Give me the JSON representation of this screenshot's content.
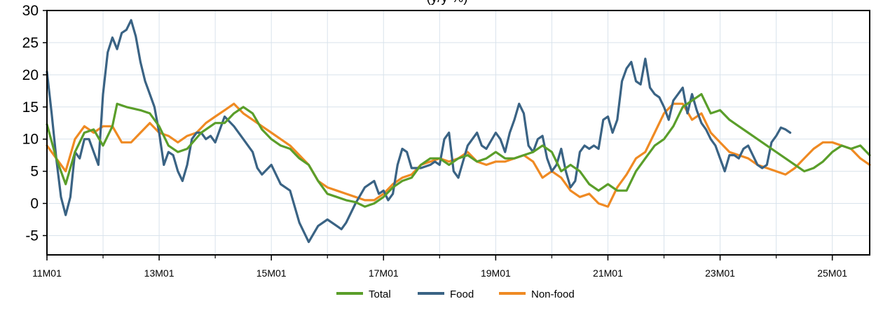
{
  "chart_data": {
    "type": "line",
    "title": "(y/y %)",
    "xlabel": "",
    "ylabel": "",
    "ylim": [
      -8,
      30
    ],
    "yticks": [
      -5,
      0,
      5,
      10,
      15,
      20,
      25,
      30
    ],
    "grid": true,
    "legend_position": "bottom",
    "x_tick_labels": [
      "11M01",
      "13M01",
      "15M01",
      "17M01",
      "19M01",
      "21M01",
      "23M01",
      "25M01"
    ],
    "x_tick_positions": [
      0,
      24,
      48,
      72,
      96,
      120,
      144,
      168
    ],
    "x_range": [
      0,
      176
    ],
    "colors": {
      "Total": "#5a9e2a",
      "Food": "#3a6384",
      "Non-food": "#ef8a23"
    },
    "series": [
      {
        "name": "Total",
        "points": [
          [
            0,
            12.3
          ],
          [
            2,
            7
          ],
          [
            4,
            3
          ],
          [
            6,
            8
          ],
          [
            8,
            11
          ],
          [
            10,
            11.5
          ],
          [
            12,
            9
          ],
          [
            14,
            12
          ],
          [
            15,
            15.5
          ],
          [
            17,
            15
          ],
          [
            20,
            14.5
          ],
          [
            22,
            14
          ],
          [
            24,
            12
          ],
          [
            26,
            9
          ],
          [
            28,
            8
          ],
          [
            30,
            8.5
          ],
          [
            33,
            11
          ],
          [
            36,
            12.5
          ],
          [
            38,
            12.5
          ],
          [
            40,
            14
          ],
          [
            42,
            15
          ],
          [
            44,
            14
          ],
          [
            46,
            11.5
          ],
          [
            48,
            10
          ],
          [
            50,
            9
          ],
          [
            52,
            8.5
          ],
          [
            54,
            7
          ],
          [
            56,
            6
          ],
          [
            58,
            3.5
          ],
          [
            60,
            1.5
          ],
          [
            62,
            1
          ],
          [
            64,
            0.5
          ],
          [
            66,
            0.2
          ],
          [
            68,
            -0.5
          ],
          [
            70,
            0
          ],
          [
            72,
            1
          ],
          [
            74,
            2.5
          ],
          [
            76,
            3.5
          ],
          [
            78,
            4
          ],
          [
            80,
            6
          ],
          [
            82,
            7
          ],
          [
            84,
            7
          ],
          [
            86,
            6
          ],
          [
            88,
            7
          ],
          [
            90,
            7.5
          ],
          [
            92,
            6.5
          ],
          [
            94,
            7
          ],
          [
            96,
            8
          ],
          [
            98,
            7
          ],
          [
            100,
            7
          ],
          [
            102,
            7.5
          ],
          [
            104,
            8
          ],
          [
            106,
            9
          ],
          [
            108,
            8
          ],
          [
            110,
            5
          ],
          [
            112,
            6
          ],
          [
            114,
            5
          ],
          [
            116,
            3
          ],
          [
            118,
            2
          ],
          [
            120,
            3
          ],
          [
            122,
            2
          ],
          [
            124,
            2
          ],
          [
            126,
            5
          ],
          [
            128,
            7
          ],
          [
            130,
            9
          ],
          [
            132,
            10
          ],
          [
            134,
            12
          ],
          [
            136,
            15
          ],
          [
            138,
            16
          ],
          [
            140,
            17
          ],
          [
            142,
            14
          ],
          [
            144,
            14.5
          ],
          [
            146,
            13
          ],
          [
            148,
            12
          ],
          [
            150,
            11
          ],
          [
            152,
            10
          ],
          [
            154,
            9
          ],
          [
            156,
            8
          ],
          [
            158,
            7
          ],
          [
            160,
            6
          ],
          [
            162,
            5
          ],
          [
            164,
            5.5
          ],
          [
            166,
            6.5
          ],
          [
            168,
            8
          ],
          [
            170,
            9
          ],
          [
            172,
            8.5
          ],
          [
            174,
            9
          ],
          [
            176,
            7.5
          ]
        ]
      },
      {
        "name": "Food",
        "points": [
          [
            0,
            20.5
          ],
          [
            1,
            14
          ],
          [
            2,
            7
          ],
          [
            3,
            1
          ],
          [
            4,
            -1.8
          ],
          [
            5,
            1
          ],
          [
            6,
            8
          ],
          [
            7,
            7
          ],
          [
            8,
            10
          ],
          [
            9,
            10
          ],
          [
            10,
            8
          ],
          [
            11,
            6
          ],
          [
            12,
            17
          ],
          [
            13,
            23.5
          ],
          [
            14,
            25.8
          ],
          [
            15,
            24
          ],
          [
            16,
            26.5
          ],
          [
            17,
            27
          ],
          [
            18,
            28.5
          ],
          [
            19,
            26
          ],
          [
            20,
            22
          ],
          [
            21,
            19
          ],
          [
            22,
            17
          ],
          [
            23,
            15
          ],
          [
            24,
            11
          ],
          [
            25,
            6
          ],
          [
            26,
            8
          ],
          [
            27,
            7.5
          ],
          [
            28,
            5
          ],
          [
            29,
            3.5
          ],
          [
            30,
            6
          ],
          [
            31,
            10
          ],
          [
            32,
            11
          ],
          [
            33,
            11
          ],
          [
            34,
            10
          ],
          [
            35,
            10.5
          ],
          [
            36,
            9.5
          ],
          [
            38,
            13.5
          ],
          [
            40,
            12
          ],
          [
            42,
            10
          ],
          [
            44,
            8
          ],
          [
            45,
            5.5
          ],
          [
            46,
            4.5
          ],
          [
            48,
            6
          ],
          [
            50,
            3
          ],
          [
            52,
            2
          ],
          [
            54,
            -3
          ],
          [
            56,
            -6
          ],
          [
            58,
            -3.5
          ],
          [
            60,
            -2.5
          ],
          [
            62,
            -3.5
          ],
          [
            63,
            -4
          ],
          [
            64,
            -3
          ],
          [
            66,
            0
          ],
          [
            68,
            2.5
          ],
          [
            70,
            3.5
          ],
          [
            71,
            1.5
          ],
          [
            72,
            2
          ],
          [
            73,
            0.5
          ],
          [
            74,
            1.5
          ],
          [
            75,
            6
          ],
          [
            76,
            8.5
          ],
          [
            77,
            8
          ],
          [
            78,
            5.5
          ],
          [
            80,
            5.5
          ],
          [
            82,
            6
          ],
          [
            83,
            6.5
          ],
          [
            84,
            6
          ],
          [
            85,
            10
          ],
          [
            86,
            11
          ],
          [
            87,
            5
          ],
          [
            88,
            4
          ],
          [
            90,
            9
          ],
          [
            92,
            11
          ],
          [
            93,
            9
          ],
          [
            94,
            8.5
          ],
          [
            96,
            11
          ],
          [
            97,
            10
          ],
          [
            98,
            8
          ],
          [
            99,
            11
          ],
          [
            100,
            13
          ],
          [
            101,
            15.5
          ],
          [
            102,
            14
          ],
          [
            103,
            9
          ],
          [
            104,
            8
          ],
          [
            105,
            10
          ],
          [
            106,
            10.5
          ],
          [
            107,
            7
          ],
          [
            108,
            5
          ],
          [
            109,
            6
          ],
          [
            110,
            8.5
          ],
          [
            111,
            5
          ],
          [
            112,
            2.5
          ],
          [
            113,
            3.5
          ],
          [
            114,
            8
          ],
          [
            115,
            9
          ],
          [
            116,
            8.5
          ],
          [
            117,
            9
          ],
          [
            118,
            8.5
          ],
          [
            119,
            13
          ],
          [
            120,
            13.5
          ],
          [
            121,
            11
          ],
          [
            122,
            13
          ],
          [
            123,
            19
          ],
          [
            124,
            21
          ],
          [
            125,
            22
          ],
          [
            126,
            19
          ],
          [
            127,
            18.5
          ],
          [
            128,
            22.5
          ],
          [
            129,
            18
          ],
          [
            130,
            17
          ],
          [
            131,
            16.5
          ],
          [
            132,
            15
          ],
          [
            133,
            13
          ],
          [
            134,
            16
          ],
          [
            135,
            17
          ],
          [
            136,
            18
          ],
          [
            137,
            14
          ],
          [
            138,
            17
          ],
          [
            139,
            14.5
          ],
          [
            140,
            12.5
          ],
          [
            141,
            11.5
          ],
          [
            142,
            10
          ],
          [
            143,
            9
          ],
          [
            144,
            7
          ],
          [
            145,
            5
          ],
          [
            146,
            7.5
          ],
          [
            147,
            7.5
          ],
          [
            148,
            7
          ],
          [
            149,
            8.5
          ],
          [
            150,
            9
          ],
          [
            152,
            6
          ],
          [
            153,
            5.5
          ],
          [
            154,
            6
          ],
          [
            155,
            9.5
          ],
          [
            156,
            10.5
          ],
          [
            157,
            11.8
          ],
          [
            158,
            11.5
          ],
          [
            159,
            11
          ]
        ]
      },
      {
        "name": "Non-food",
        "points": [
          [
            0,
            9
          ],
          [
            2,
            7
          ],
          [
            4,
            5
          ],
          [
            6,
            10
          ],
          [
            8,
            12
          ],
          [
            10,
            11
          ],
          [
            12,
            12
          ],
          [
            14,
            12
          ],
          [
            16,
            9.5
          ],
          [
            18,
            9.5
          ],
          [
            20,
            11
          ],
          [
            22,
            12.5
          ],
          [
            24,
            11
          ],
          [
            26,
            10.5
          ],
          [
            28,
            9.5
          ],
          [
            30,
            10.5
          ],
          [
            32,
            11
          ],
          [
            34,
            12.5
          ],
          [
            36,
            13.5
          ],
          [
            38,
            14.5
          ],
          [
            40,
            15.5
          ],
          [
            42,
            14
          ],
          [
            44,
            13
          ],
          [
            46,
            12
          ],
          [
            48,
            11
          ],
          [
            50,
            10
          ],
          [
            52,
            9
          ],
          [
            54,
            7.5
          ],
          [
            56,
            6
          ],
          [
            58,
            3.5
          ],
          [
            60,
            2.5
          ],
          [
            62,
            2
          ],
          [
            64,
            1.5
          ],
          [
            66,
            1
          ],
          [
            68,
            0.5
          ],
          [
            70,
            0.5
          ],
          [
            72,
            1.5
          ],
          [
            74,
            3
          ],
          [
            76,
            4
          ],
          [
            78,
            4.5
          ],
          [
            80,
            6
          ],
          [
            82,
            6.5
          ],
          [
            84,
            7
          ],
          [
            86,
            6.5
          ],
          [
            88,
            7
          ],
          [
            90,
            8
          ],
          [
            92,
            6.5
          ],
          [
            94,
            6
          ],
          [
            96,
            6.5
          ],
          [
            98,
            6.5
          ],
          [
            100,
            7
          ],
          [
            102,
            7.5
          ],
          [
            104,
            6.5
          ],
          [
            106,
            4
          ],
          [
            108,
            5
          ],
          [
            110,
            4
          ],
          [
            112,
            2
          ],
          [
            114,
            1
          ],
          [
            116,
            1.5
          ],
          [
            118,
            0
          ],
          [
            120,
            -0.5
          ],
          [
            122,
            2.5
          ],
          [
            124,
            4.5
          ],
          [
            126,
            7
          ],
          [
            128,
            8
          ],
          [
            130,
            11
          ],
          [
            132,
            14
          ],
          [
            134,
            15.5
          ],
          [
            136,
            15.5
          ],
          [
            138,
            13
          ],
          [
            140,
            14
          ],
          [
            142,
            11
          ],
          [
            144,
            9.5
          ],
          [
            146,
            8
          ],
          [
            148,
            7.5
          ],
          [
            150,
            7
          ],
          [
            152,
            6
          ],
          [
            154,
            5.5
          ],
          [
            156,
            5
          ],
          [
            158,
            4.5
          ],
          [
            160,
            5.5
          ],
          [
            162,
            7
          ],
          [
            164,
            8.5
          ],
          [
            166,
            9.5
          ],
          [
            168,
            9.5
          ],
          [
            170,
            9
          ],
          [
            172,
            8.5
          ],
          [
            174,
            7
          ],
          [
            176,
            6
          ]
        ]
      }
    ]
  }
}
